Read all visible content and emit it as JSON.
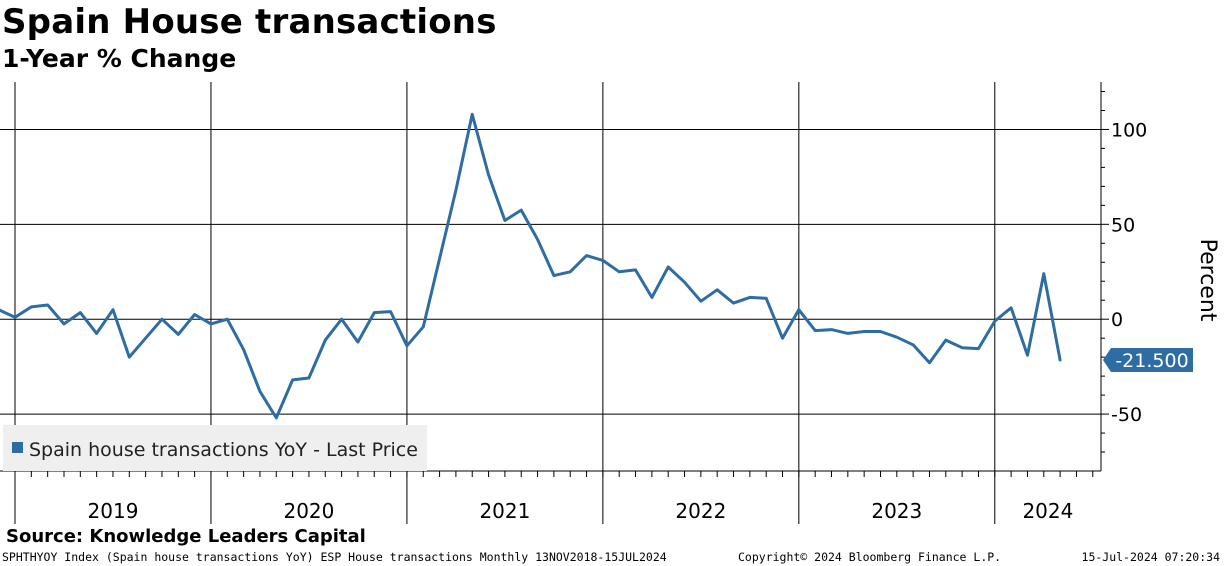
{
  "title": "Spain House transactions",
  "subtitle": "1-Year % Change",
  "source": "Source: Knowledge Leaders Capital",
  "footer": {
    "left": "SPHTHYOY Index (Spain house transactions YoY) ESP House transactions  Monthly 13NOV2018-15JUL2024",
    "middle": "Copyright© 2024 Bloomberg Finance L.P.",
    "right": "15-Jul-2024 07:20:34"
  },
  "chart_data": {
    "type": "line",
    "ylabel": "Percent",
    "ylim": [
      -80,
      125
    ],
    "yticks": [
      -50,
      0,
      50,
      100
    ],
    "year_labels": [
      "2019",
      "2020",
      "2021",
      "2022",
      "2023",
      "2024"
    ],
    "grid": true,
    "legend": {
      "position": "bottom-left",
      "entry": "Spain house transactions YoY - Last Price"
    },
    "last_value_label": "-21.500",
    "series": [
      {
        "name": "Spain house transactions YoY - Last Price",
        "color": "#2e6da4",
        "dates": [
          "2018-11",
          "2018-12",
          "2019-01",
          "2019-02",
          "2019-03",
          "2019-04",
          "2019-05",
          "2019-06",
          "2019-07",
          "2019-08",
          "2019-09",
          "2019-10",
          "2019-11",
          "2019-12",
          "2020-01",
          "2020-02",
          "2020-03",
          "2020-04",
          "2020-05",
          "2020-06",
          "2020-07",
          "2020-08",
          "2020-09",
          "2020-10",
          "2020-11",
          "2020-12",
          "2021-01",
          "2021-02",
          "2021-03",
          "2021-04",
          "2021-05",
          "2021-06",
          "2021-07",
          "2021-08",
          "2021-09",
          "2021-10",
          "2021-11",
          "2021-12",
          "2022-01",
          "2022-02",
          "2022-03",
          "2022-04",
          "2022-05",
          "2022-06",
          "2022-07",
          "2022-08",
          "2022-09",
          "2022-10",
          "2022-11",
          "2022-12",
          "2023-01",
          "2023-02",
          "2023-03",
          "2023-04",
          "2023-05",
          "2023-06",
          "2023-07",
          "2023-08",
          "2023-09",
          "2023-10",
          "2023-11",
          "2023-12",
          "2024-01",
          "2024-02",
          "2024-03",
          "2024-04",
          "2024-05"
        ],
        "values": [
          4.5,
          5,
          1,
          6.5,
          7.5,
          -2.5,
          3.5,
          -7.5,
          5,
          -20,
          -10,
          0,
          -8,
          2.5,
          -2.5,
          0,
          -16,
          -38,
          -52,
          -32,
          -31,
          -11,
          0,
          -12,
          3.5,
          4,
          -14,
          -4,
          32,
          68,
          108,
          76,
          52,
          57.5,
          42,
          23,
          25,
          33.5,
          31,
          25,
          26,
          11.5,
          27.5,
          19.5,
          9.5,
          15.5,
          8.5,
          11.5,
          11,
          -10,
          5,
          -6,
          -5.5,
          -7.5,
          -6.5,
          -6.5,
          -9.5,
          -13.5,
          -23,
          -11,
          -15,
          -15.5,
          -1,
          6,
          -19,
          24,
          -21.5
        ]
      }
    ]
  }
}
